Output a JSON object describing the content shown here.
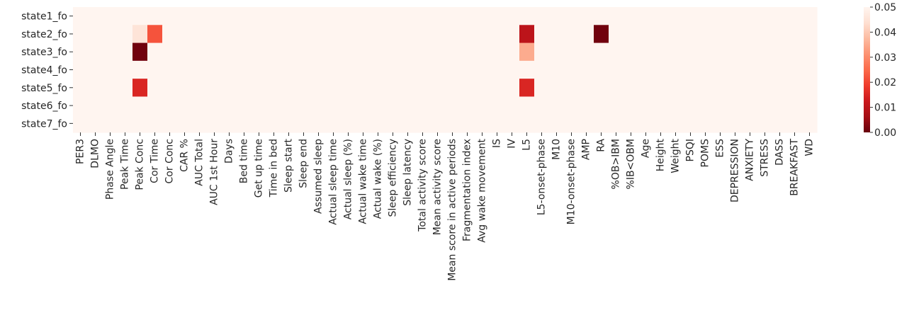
{
  "chart_data": {
    "type": "heatmap",
    "title": "",
    "xlabel": "",
    "ylabel": "",
    "rows": [
      "state1_fo",
      "state2_fo",
      "state3_fo",
      "state4_fo",
      "state5_fo",
      "state6_fo",
      "state7_fo"
    ],
    "columns": [
      "PER3",
      "DLMO",
      "Phase Angle",
      "Peak  Time",
      "Peak Conc",
      "Cor  Time",
      "Cor Conc",
      "CAR %",
      "AUC Total",
      "AUC 1st Hour",
      "Days",
      "Bed time",
      "Get up time",
      "Time in bed",
      "Sleep start",
      "Sleep end",
      "Assumed sleep",
      "Actual sleep time",
      "Actual sleep (%)",
      "Actual wake time",
      "Actual wake (%)",
      "Sleep efficiency",
      "Sleep latency",
      "Total activity score",
      "Mean activity score",
      "Mean score in active periods",
      "Fragmentation index",
      "Avg wake movement",
      "IS",
      "IV",
      "L5",
      "L5-onset-phase",
      "M10",
      "M10-onset-phase",
      "AMP",
      "RA",
      "%OB>IBM",
      "%IB<OBM",
      "Age",
      "Height",
      "Weight",
      "PSQI",
      "POMS",
      "ESS",
      "DEPRESSION",
      "ANXIETY",
      "STRESS",
      "DASS",
      "BREAKFAST",
      "WD"
    ],
    "default_value": 0.05,
    "cells": [
      {
        "row": "state2_fo",
        "column": "Peak Conc",
        "value": 0.045
      },
      {
        "row": "state2_fo",
        "column": "Cor  Time",
        "value": 0.022
      },
      {
        "row": "state2_fo",
        "column": "L5",
        "value": 0.01
      },
      {
        "row": "state2_fo",
        "column": "RA",
        "value": 0.001
      },
      {
        "row": "state3_fo",
        "column": "Peak Conc",
        "value": 0.001
      },
      {
        "row": "state3_fo",
        "column": "L5",
        "value": 0.035
      },
      {
        "row": "state5_fo",
        "column": "Peak Conc",
        "value": 0.015
      },
      {
        "row": "state5_fo",
        "column": "L5",
        "value": 0.015
      }
    ],
    "colorbar": {
      "colormap": "Reds_r",
      "vmin": 0.0,
      "vmax": 0.05,
      "ticks": [
        "0.00",
        "0.01",
        "0.02",
        "0.03",
        "0.04",
        "0.05"
      ]
    },
    "grid": false,
    "legend_position": "right"
  }
}
